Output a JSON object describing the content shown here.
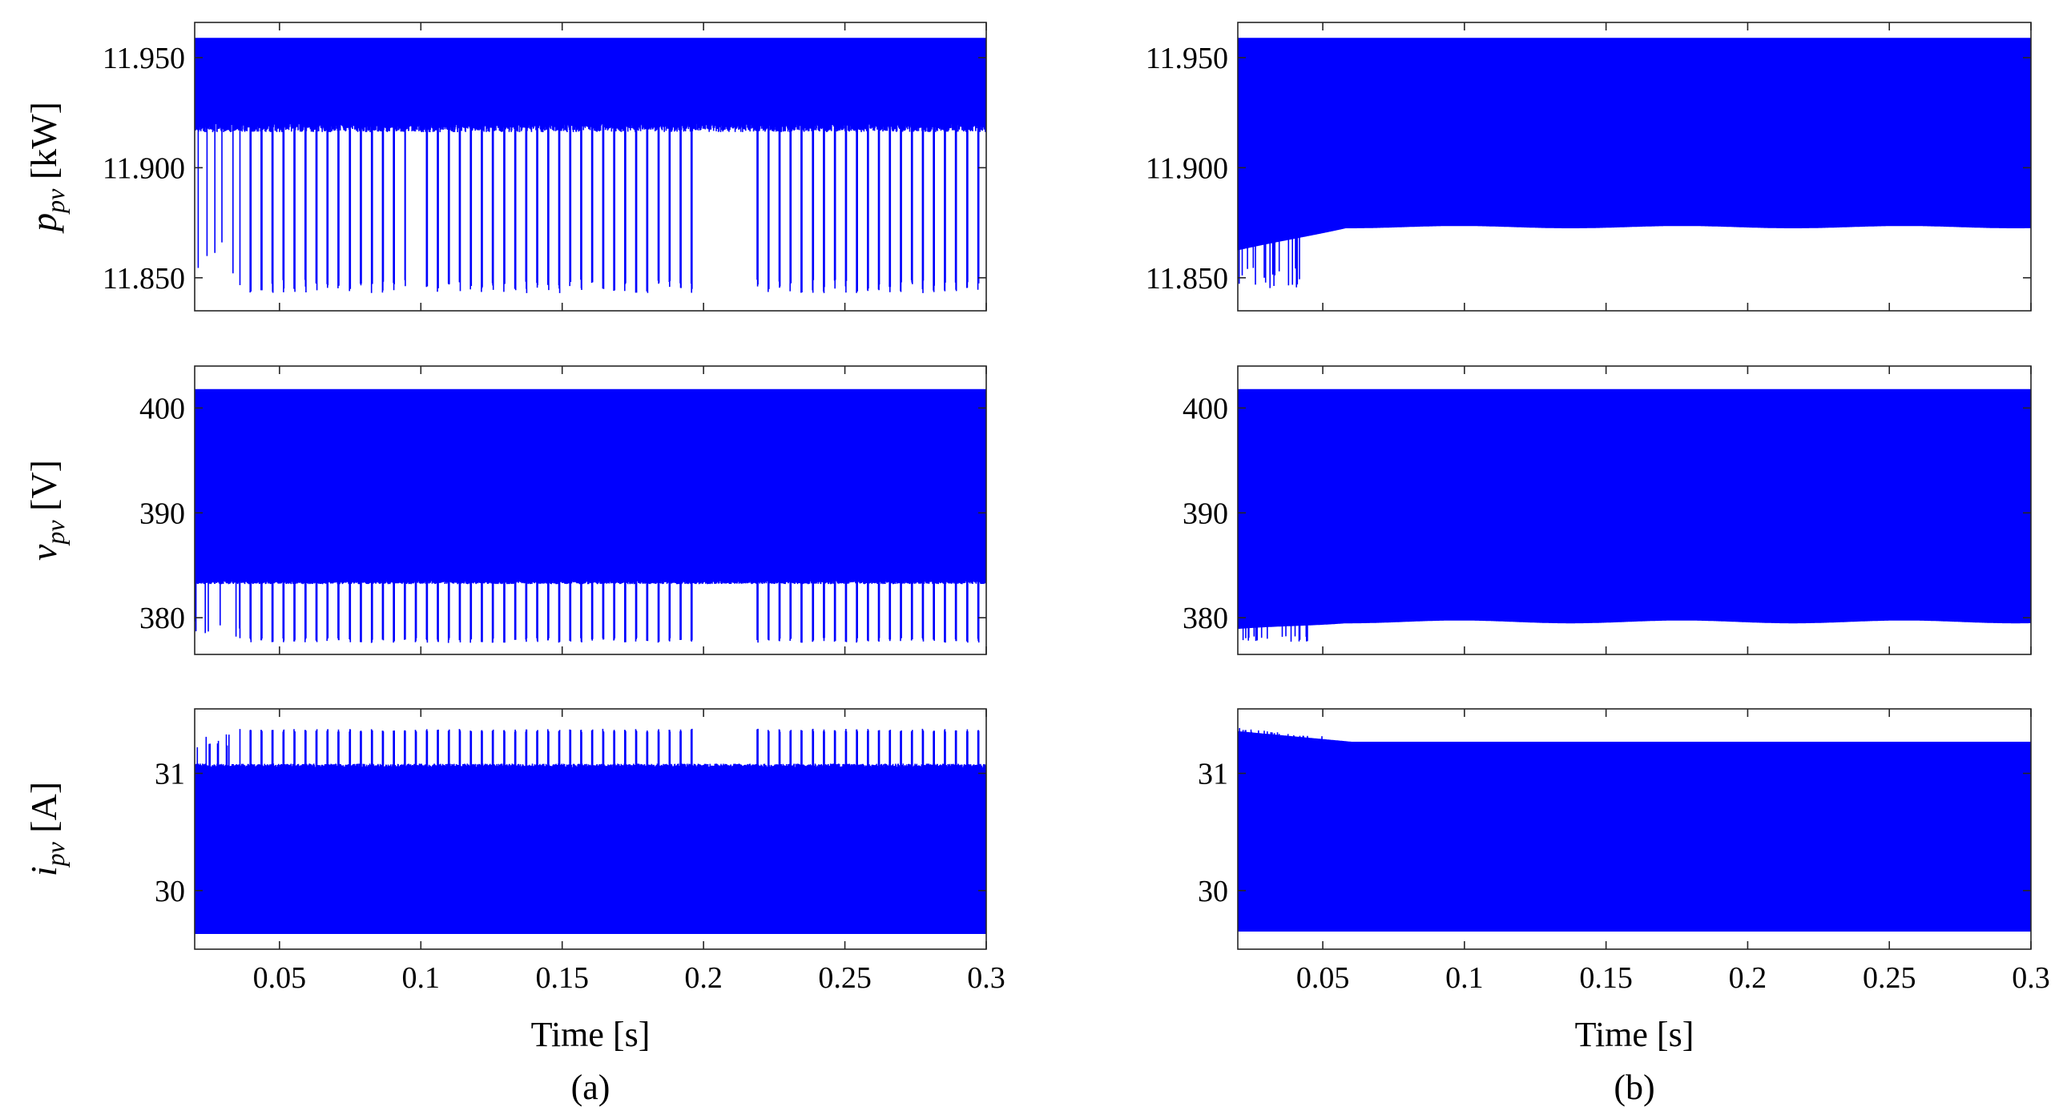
{
  "figure": {
    "panel_labels": [
      "(a)",
      "(b)"
    ],
    "x_axis_label": "Time [s]",
    "trace_color": "#0000ff"
  },
  "chart_data": [
    {
      "id": "a-ppv",
      "type": "line",
      "column": "a",
      "row": 0,
      "ylabel": {
        "var": "p",
        "sub": "pv",
        "unit": "[kW]"
      },
      "xlim": [
        0.02,
        0.3
      ],
      "ylim": [
        11.835,
        11.966
      ],
      "xticks": [
        0.05,
        0.1,
        0.15,
        0.2,
        0.25,
        0.3
      ],
      "xtick_labels": [
        "0.05",
        "0.1",
        "0.15",
        "0.2",
        "0.25",
        "0.3"
      ],
      "show_xtick_labels": false,
      "yticks": [
        11.85,
        11.9,
        11.95
      ],
      "ytick_labels": [
        "11.850",
        "11.900",
        "11.950"
      ],
      "series": [
        {
          "name": "p_pv",
          "upper": 11.959,
          "lower_base": 11.92,
          "spike_low": 11.843,
          "variant": "a"
        }
      ]
    },
    {
      "id": "a-vpv",
      "type": "line",
      "column": "a",
      "row": 1,
      "ylabel": {
        "var": "v",
        "sub": "pv",
        "unit": "[V]"
      },
      "xlim": [
        0.02,
        0.3
      ],
      "ylim": [
        376.5,
        404
      ],
      "xticks": [
        0.05,
        0.1,
        0.15,
        0.2,
        0.25,
        0.3
      ],
      "xtick_labels": [
        "0.05",
        "0.1",
        "0.15",
        "0.2",
        "0.25",
        "0.3"
      ],
      "show_xtick_labels": false,
      "yticks": [
        380,
        390,
        400
      ],
      "ytick_labels": [
        "380",
        "390",
        "400"
      ],
      "series": [
        {
          "name": "v_pv",
          "upper": 401.8,
          "lower_base": 383.5,
          "spike_low": 377.6,
          "variant": "a"
        }
      ]
    },
    {
      "id": "a-ipv",
      "type": "line",
      "column": "a",
      "row": 2,
      "ylabel": {
        "var": "i",
        "sub": "pv",
        "unit": "[A]"
      },
      "xlim": [
        0.02,
        0.3
      ],
      "ylim": [
        29.5,
        31.55
      ],
      "xticks": [
        0.05,
        0.1,
        0.15,
        0.2,
        0.25,
        0.3
      ],
      "xtick_labels": [
        "0.05",
        "0.1",
        "0.15",
        "0.2",
        "0.25",
        "0.3"
      ],
      "show_xtick_labels": true,
      "yticks": [
        30,
        31
      ],
      "ytick_labels": [
        "30",
        "31"
      ],
      "series": [
        {
          "name": "i_pv",
          "upper_base": 31.05,
          "spike_high": 31.38,
          "lower": 29.63,
          "variant": "a-current"
        }
      ]
    },
    {
      "id": "b-ppv",
      "type": "line",
      "column": "b",
      "row": 0,
      "ylabel": {
        "var": "p",
        "sub": "pv",
        "unit": "[kW]"
      },
      "xlim": [
        0.02,
        0.3
      ],
      "ylim": [
        11.835,
        11.966
      ],
      "xticks": [
        0.05,
        0.1,
        0.15,
        0.2,
        0.25,
        0.3
      ],
      "xtick_labels": [
        "0.05",
        "0.1",
        "0.15",
        "0.2",
        "0.25",
        "0.3"
      ],
      "show_xtick_labels": false,
      "yticks": [
        11.85,
        11.9,
        11.95
      ],
      "ytick_labels": [
        "11.850",
        "11.900",
        "11.950"
      ],
      "series": [
        {
          "name": "p_pv",
          "upper": 11.959,
          "lower_settled": 11.873,
          "lower_start": 11.862,
          "spike_low": 11.845,
          "variant": "b"
        }
      ]
    },
    {
      "id": "b-vpv",
      "type": "line",
      "column": "b",
      "row": 1,
      "ylabel": {
        "var": "v",
        "sub": "pv",
        "unit": "[V]"
      },
      "xlim": [
        0.02,
        0.3
      ],
      "ylim": [
        376.5,
        404
      ],
      "xticks": [
        0.05,
        0.1,
        0.15,
        0.2,
        0.25,
        0.3
      ],
      "xtick_labels": [
        "0.05",
        "0.1",
        "0.15",
        "0.2",
        "0.25",
        "0.3"
      ],
      "show_xtick_labels": false,
      "yticks": [
        380,
        390,
        400
      ],
      "ytick_labels": [
        "380",
        "390",
        "400"
      ],
      "series": [
        {
          "name": "v_pv",
          "upper": 401.8,
          "lower_settled": 379.6,
          "lower_start": 378.8,
          "spike_low": 377.7,
          "variant": "b"
        }
      ]
    },
    {
      "id": "b-ipv",
      "type": "line",
      "column": "b",
      "row": 2,
      "ylabel": {
        "var": "i",
        "sub": "pv",
        "unit": "[A]"
      },
      "xlim": [
        0.02,
        0.3
      ],
      "ylim": [
        29.5,
        31.55
      ],
      "xticks": [
        0.05,
        0.1,
        0.15,
        0.2,
        0.25,
        0.3
      ],
      "xtick_labels": [
        "0.05",
        "0.1",
        "0.15",
        "0.2",
        "0.25",
        "0.3"
      ],
      "show_xtick_labels": true,
      "yticks": [
        30,
        31
      ],
      "ytick_labels": [
        "30",
        "31"
      ],
      "series": [
        {
          "name": "i_pv",
          "upper_settled": 31.27,
          "upper_start": 31.36,
          "lower": 29.65,
          "variant": "b-current"
        }
      ]
    }
  ]
}
